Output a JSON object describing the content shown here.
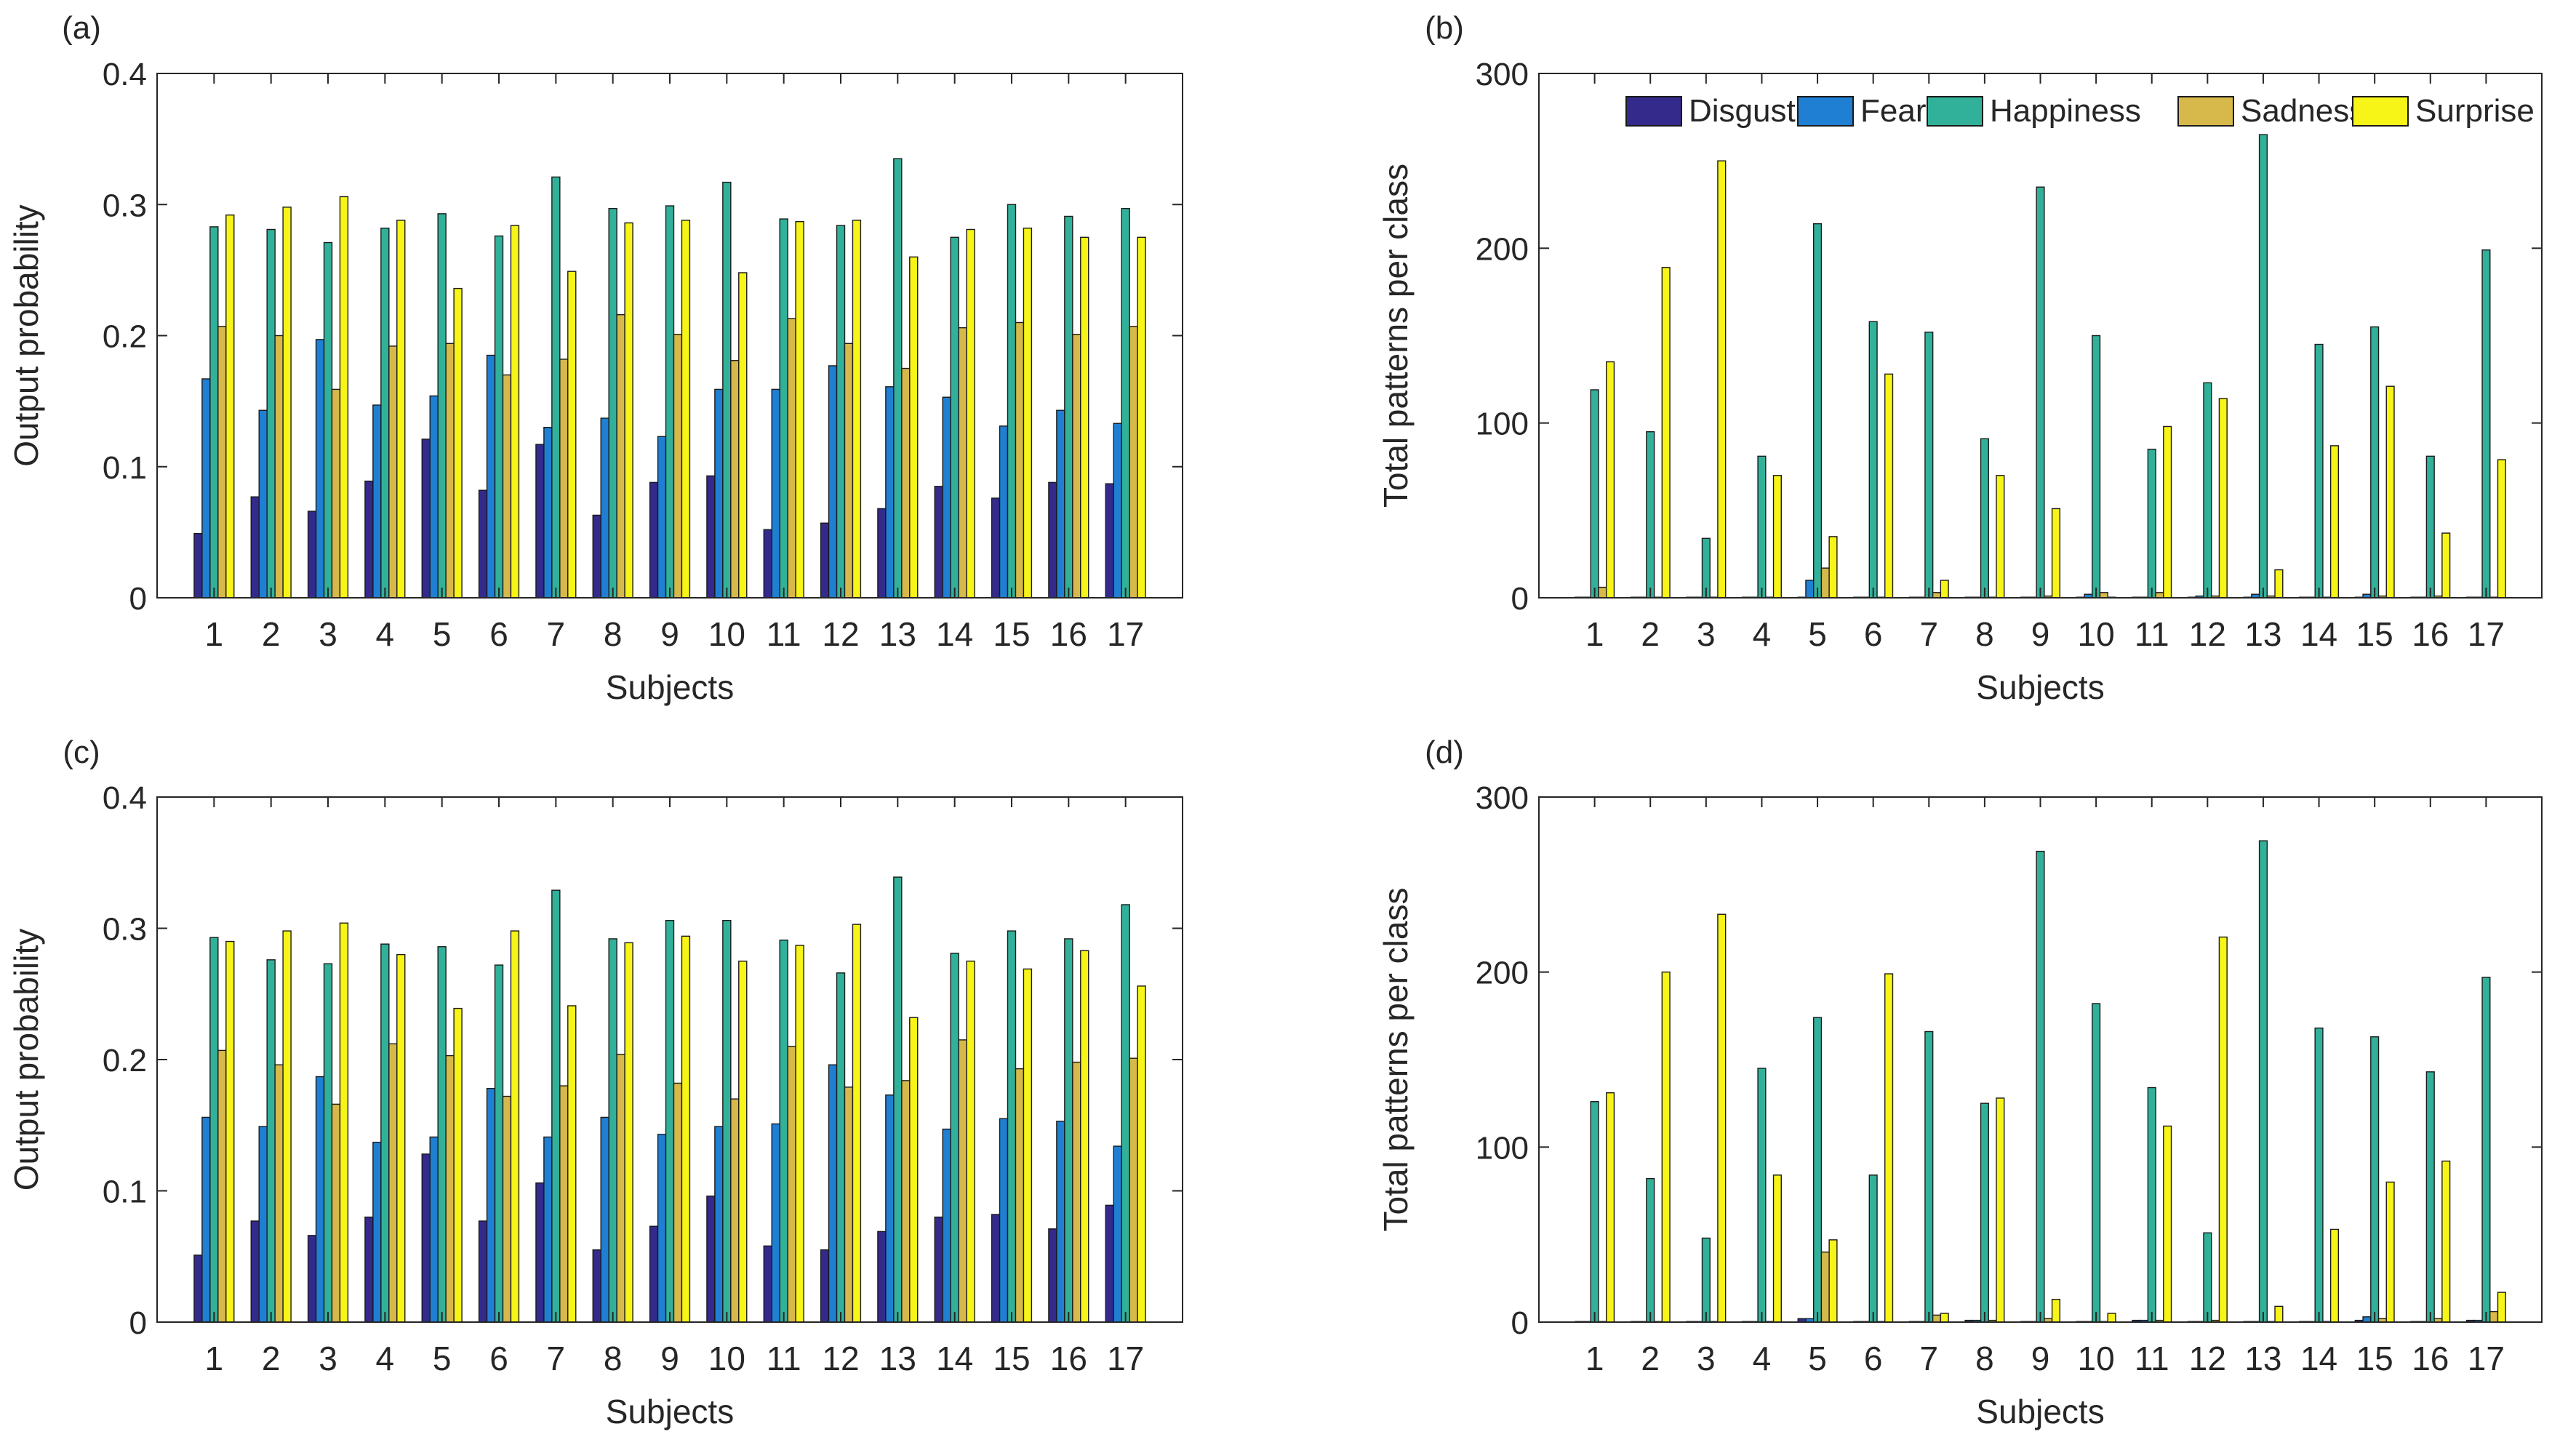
{
  "colors": {
    "Disgust": "#332a8c",
    "Fear": "#1f7fd3",
    "Happiness": "#32b19a",
    "Sadness": "#d7b84a",
    "Surprise": "#f7f417",
    "axis": "#262626"
  },
  "legend": {
    "items": [
      "Disgust",
      "Fear",
      "Happiness",
      "Sadness",
      "Surprise"
    ],
    "placement": "top-right",
    "panel": "b"
  },
  "chart_data": [
    {
      "panel_label": "(a)",
      "type": "bar",
      "xlabel": "Subjects",
      "ylabel": "Output probability",
      "ylim": [
        0,
        0.4
      ],
      "yticks": [
        "0",
        "0.1",
        "0.2",
        "0.3",
        "0.4"
      ],
      "categories": [
        "1",
        "2",
        "3",
        "4",
        "5",
        "6",
        "7",
        "8",
        "9",
        "10",
        "11",
        "12",
        "13",
        "14",
        "15",
        "16",
        "17"
      ],
      "series": [
        {
          "name": "Disgust",
          "values": [
            0.049,
            0.077,
            0.066,
            0.089,
            0.121,
            0.082,
            0.117,
            0.063,
            0.088,
            0.093,
            0.052,
            0.057,
            0.068,
            0.085,
            0.076,
            0.088,
            0.087
          ]
        },
        {
          "name": "Fear",
          "values": [
            0.167,
            0.143,
            0.197,
            0.147,
            0.154,
            0.185,
            0.13,
            0.137,
            0.123,
            0.159,
            0.159,
            0.177,
            0.161,
            0.153,
            0.131,
            0.143,
            0.133
          ]
        },
        {
          "name": "Happiness",
          "values": [
            0.283,
            0.281,
            0.271,
            0.282,
            0.293,
            0.276,
            0.321,
            0.297,
            0.299,
            0.317,
            0.289,
            0.284,
            0.335,
            0.275,
            0.3,
            0.291,
            0.297
          ]
        },
        {
          "name": "Sadness",
          "values": [
            0.207,
            0.2,
            0.159,
            0.192,
            0.194,
            0.17,
            0.182,
            0.216,
            0.201,
            0.181,
            0.213,
            0.194,
            0.175,
            0.206,
            0.21,
            0.201,
            0.207
          ]
        },
        {
          "name": "Surprise",
          "values": [
            0.292,
            0.298,
            0.306,
            0.288,
            0.236,
            0.284,
            0.249,
            0.286,
            0.288,
            0.248,
            0.287,
            0.288,
            0.26,
            0.281,
            0.282,
            0.275,
            0.275
          ]
        }
      ]
    },
    {
      "panel_label": "(b)",
      "type": "bar",
      "xlabel": "Subjects",
      "ylabel": "Total patterns per class",
      "ylim": [
        0,
        300
      ],
      "yticks": [
        "0",
        "100",
        "200",
        "300"
      ],
      "categories": [
        "1",
        "2",
        "3",
        "4",
        "5",
        "6",
        "7",
        "8",
        "9",
        "10",
        "11",
        "12",
        "13",
        "14",
        "15",
        "16",
        "17"
      ],
      "series": [
        {
          "name": "Disgust",
          "values": [
            0,
            0,
            0,
            0,
            0,
            0,
            0,
            0,
            0,
            0,
            0,
            0,
            0,
            0,
            0,
            0,
            0
          ]
        },
        {
          "name": "Fear",
          "values": [
            0,
            0,
            0,
            0,
            10,
            0,
            0,
            0,
            0,
            2,
            0,
            1,
            2,
            0,
            2,
            0,
            0
          ]
        },
        {
          "name": "Happiness",
          "values": [
            119,
            95,
            34,
            81,
            214,
            158,
            152,
            91,
            235,
            150,
            85,
            123,
            265,
            145,
            155,
            81,
            199
          ]
        },
        {
          "name": "Sadness",
          "values": [
            6,
            0,
            0,
            0,
            17,
            0,
            3,
            0,
            1,
            3,
            3,
            1,
            1,
            0,
            1,
            1,
            0
          ]
        },
        {
          "name": "Surprise",
          "values": [
            135,
            189,
            250,
            70,
            35,
            128,
            10,
            70,
            51,
            0,
            98,
            114,
            16,
            87,
            121,
            37,
            79
          ]
        }
      ]
    },
    {
      "panel_label": "(c)",
      "type": "bar",
      "xlabel": "Subjects",
      "ylabel": "Output probability",
      "ylim": [
        0,
        0.4
      ],
      "yticks": [
        "0",
        "0.1",
        "0.2",
        "0.3",
        "0.4"
      ],
      "categories": [
        "1",
        "2",
        "3",
        "4",
        "5",
        "6",
        "7",
        "8",
        "9",
        "10",
        "11",
        "12",
        "13",
        "14",
        "15",
        "16",
        "17"
      ],
      "series": [
        {
          "name": "Disgust",
          "values": [
            0.051,
            0.077,
            0.066,
            0.08,
            0.128,
            0.077,
            0.106,
            0.055,
            0.073,
            0.096,
            0.058,
            0.055,
            0.069,
            0.08,
            0.082,
            0.071,
            0.089
          ]
        },
        {
          "name": "Fear",
          "values": [
            0.156,
            0.149,
            0.187,
            0.137,
            0.141,
            0.178,
            0.141,
            0.156,
            0.143,
            0.149,
            0.151,
            0.196,
            0.173,
            0.147,
            0.155,
            0.153,
            0.134
          ]
        },
        {
          "name": "Happiness",
          "values": [
            0.293,
            0.276,
            0.273,
            0.288,
            0.286,
            0.272,
            0.329,
            0.292,
            0.306,
            0.306,
            0.291,
            0.266,
            0.339,
            0.281,
            0.298,
            0.292,
            0.318
          ]
        },
        {
          "name": "Sadness",
          "values": [
            0.207,
            0.196,
            0.166,
            0.212,
            0.203,
            0.172,
            0.18,
            0.204,
            0.182,
            0.17,
            0.21,
            0.179,
            0.184,
            0.215,
            0.193,
            0.198,
            0.201
          ]
        },
        {
          "name": "Surprise",
          "values": [
            0.29,
            0.298,
            0.304,
            0.28,
            0.239,
            0.298,
            0.241,
            0.289,
            0.294,
            0.275,
            0.287,
            0.303,
            0.232,
            0.275,
            0.269,
            0.283,
            0.256
          ]
        }
      ]
    },
    {
      "panel_label": "(d)",
      "type": "bar",
      "xlabel": "Subjects",
      "ylabel": "Total patterns per class",
      "ylim": [
        0,
        300
      ],
      "yticks": [
        "0",
        "100",
        "200",
        "300"
      ],
      "categories": [
        "1",
        "2",
        "3",
        "4",
        "5",
        "6",
        "7",
        "8",
        "9",
        "10",
        "11",
        "12",
        "13",
        "14",
        "15",
        "16",
        "17"
      ],
      "series": [
        {
          "name": "Disgust",
          "values": [
            0,
            0,
            0,
            0,
            2,
            0,
            0,
            1,
            0,
            0,
            1,
            0,
            0,
            0,
            1,
            0,
            1
          ]
        },
        {
          "name": "Fear",
          "values": [
            0,
            0,
            0,
            0,
            2,
            0,
            0,
            1,
            0,
            0,
            1,
            0,
            0,
            0,
            3,
            0,
            1
          ]
        },
        {
          "name": "Happiness",
          "values": [
            126,
            82,
            48,
            145,
            174,
            84,
            166,
            125,
            269,
            182,
            134,
            51,
            275,
            168,
            163,
            143,
            197
          ]
        },
        {
          "name": "Sadness",
          "values": [
            0,
            0,
            0,
            0,
            40,
            0,
            4,
            1,
            2,
            0,
            1,
            1,
            0,
            0,
            2,
            2,
            6
          ]
        },
        {
          "name": "Surprise",
          "values": [
            131,
            200,
            233,
            84,
            47,
            199,
            5,
            128,
            13,
            5,
            112,
            220,
            9,
            53,
            80,
            92,
            17
          ]
        }
      ]
    }
  ]
}
